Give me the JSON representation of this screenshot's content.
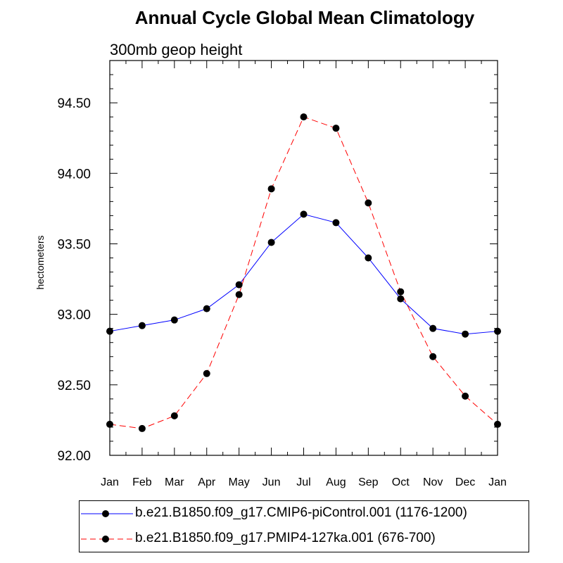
{
  "title": "Annual Cycle Global Mean Climatology",
  "subtitle": "300mb geop height",
  "chart_data": {
    "type": "line",
    "title": "Annual Cycle Global Mean Climatology",
    "subtitle": "300mb geop height",
    "xlabel": "",
    "ylabel": "hectometers",
    "categories": [
      "Jan",
      "Feb",
      "Mar",
      "Apr",
      "May",
      "Jun",
      "Jul",
      "Aug",
      "Sep",
      "Oct",
      "Nov",
      "Dec",
      "Jan"
    ],
    "ylim": [
      92.0,
      94.8
    ],
    "yticks": [
      "92.00",
      "92.50",
      "93.00",
      "93.50",
      "94.00",
      "94.50"
    ],
    "grid": false,
    "legend_position": "bottom",
    "series": [
      {
        "name": "b.e21.B1850.f09_g17.CMIP6-piControl.001 (1176-1200)",
        "color": "#0000ff",
        "dash": "solid",
        "values": [
          92.88,
          92.92,
          92.96,
          93.04,
          93.21,
          93.51,
          93.71,
          93.65,
          93.4,
          93.11,
          92.9,
          92.86,
          92.88
        ]
      },
      {
        "name": "b.e21.B1850.f09_g17.PMIP4-127ka.001 (676-700)",
        "color": "#ff0000",
        "dash": "dashed",
        "values": [
          92.22,
          92.19,
          92.28,
          92.58,
          93.14,
          93.89,
          94.4,
          94.32,
          93.79,
          93.16,
          92.7,
          92.42,
          92.22
        ]
      }
    ]
  }
}
